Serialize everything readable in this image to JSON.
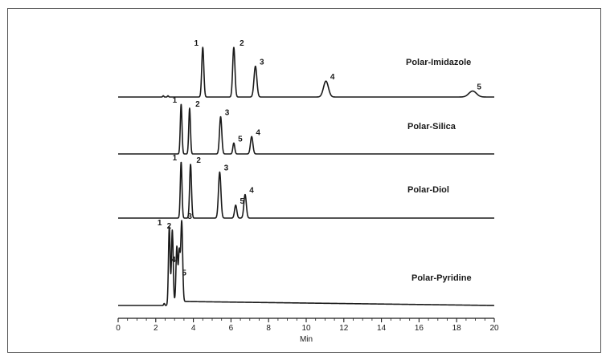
{
  "chart_data": {
    "type": "line",
    "title": "",
    "xlabel": "Min",
    "ylabel": "",
    "xlim": [
      0,
      20
    ],
    "x_ticks": [
      "0",
      "2",
      "4",
      "6",
      "8",
      "10",
      "12",
      "14",
      "16",
      "18",
      "20"
    ],
    "grid": false,
    "legend": "none",
    "series": [
      {
        "name": "Polar-Imidazole",
        "baseline_drift": 0,
        "peaks": [
          {
            "label": "1",
            "rt": 4.5,
            "height": 1.0,
            "width": 0.055
          },
          {
            "label": "2",
            "rt": 6.15,
            "height": 1.0,
            "width": 0.06
          },
          {
            "label": "3",
            "rt": 7.3,
            "height": 0.62,
            "width": 0.075
          },
          {
            "label": "4",
            "rt": 11.05,
            "height": 0.32,
            "width": 0.13
          },
          {
            "label": "5",
            "rt": 18.85,
            "height": 0.12,
            "width": 0.2
          }
        ],
        "baseline_blips": [
          2.4,
          2.65
        ]
      },
      {
        "name": "Polar-Silica",
        "baseline_drift": 0,
        "peaks": [
          {
            "label": "1",
            "rt": 3.35,
            "height": 1.0,
            "width": 0.045
          },
          {
            "label": "2",
            "rt": 3.8,
            "height": 0.92,
            "width": 0.045
          },
          {
            "label": "3",
            "rt": 5.45,
            "height": 0.75,
            "width": 0.06
          },
          {
            "label": "5",
            "rt": 6.15,
            "height": 0.22,
            "width": 0.05
          },
          {
            "label": "4",
            "rt": 7.1,
            "height": 0.35,
            "width": 0.065
          }
        ],
        "baseline_blips": []
      },
      {
        "name": "Polar-Diol",
        "baseline_drift": 0,
        "peaks": [
          {
            "label": "1",
            "rt": 3.35,
            "height": 1.0,
            "width": 0.045
          },
          {
            "label": "2",
            "rt": 3.85,
            "height": 0.96,
            "width": 0.05
          },
          {
            "label": "3",
            "rt": 5.4,
            "height": 0.82,
            "width": 0.065
          },
          {
            "label": "5",
            "rt": 6.25,
            "height": 0.23,
            "width": 0.06
          },
          {
            "label": "4",
            "rt": 6.75,
            "height": 0.42,
            "width": 0.065
          }
        ],
        "baseline_blips": []
      },
      {
        "name": "Polar-Pyridine",
        "baseline_drift": 0.05,
        "peaks": [
          {
            "label": "1",
            "rt": 2.72,
            "height": 0.98,
            "width": 0.045
          },
          {
            "label": "2",
            "rt": 2.88,
            "height": 0.94,
            "width": 0.045
          },
          {
            "label": "4",
            "rt": 3.12,
            "height": 0.68,
            "width": 0.045
          },
          {
            "label": "5",
            "rt": 3.25,
            "height": 0.62,
            "width": 0.045
          },
          {
            "label": "3",
            "rt": 3.38,
            "height": 1.0,
            "width": 0.05
          }
        ],
        "baseline_blips": [
          2.45
        ]
      }
    ]
  }
}
